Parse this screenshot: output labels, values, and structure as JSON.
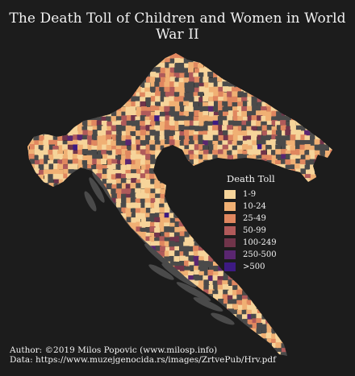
{
  "title": "The Death Toll of Children and Women in World War II",
  "legend": {
    "title": "Death Toll",
    "items": [
      {
        "label": "1-9",
        "color": "#f6d49a"
      },
      {
        "label": "10-24",
        "color": "#f0b074"
      },
      {
        "label": "25-49",
        "color": "#e0875f"
      },
      {
        "label": "50-99",
        "color": "#b05a5a"
      },
      {
        "label": "100-249",
        "color": "#70344a"
      },
      {
        "label": "250-500",
        "color": "#5a2670"
      },
      {
        "label": ">500",
        "color": "#3d1a82"
      }
    ]
  },
  "no_data_color": "#4a4a4a",
  "footer": {
    "author": "Author: ©2019 Milos Popovic (www.milosp.info)",
    "data": "Data: https://www.muzejgenocida.rs/images/ZrtvePub/Hrv.pdf"
  }
}
